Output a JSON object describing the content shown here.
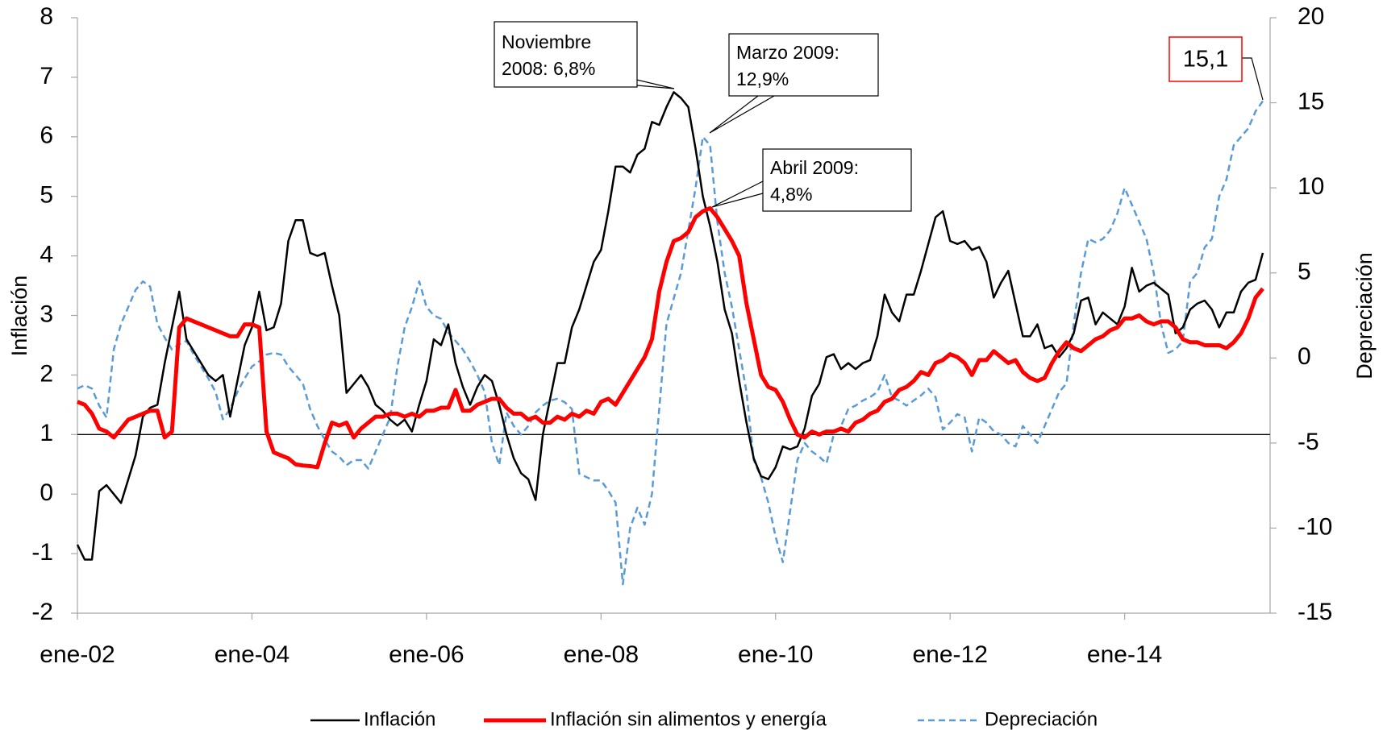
{
  "chart_data": {
    "type": "line",
    "y_label": "Inflación",
    "y2_label": "Depreciación",
    "categories": [
      "ene-02",
      null,
      null,
      null,
      null,
      null,
      null,
      null,
      null,
      null,
      null,
      null,
      null,
      null,
      null,
      null,
      null,
      null,
      null,
      null,
      null,
      null,
      null,
      null,
      "ene-04",
      null,
      null,
      null,
      null,
      null,
      null,
      null,
      null,
      null,
      null,
      null,
      null,
      null,
      null,
      null,
      null,
      null,
      null,
      null,
      null,
      null,
      null,
      null,
      "ene-06",
      null,
      null,
      null,
      null,
      null,
      null,
      null,
      null,
      null,
      null,
      null,
      null,
      null,
      null,
      null,
      null,
      null,
      null,
      null,
      null,
      null,
      null,
      null,
      "ene-08",
      null,
      null,
      null,
      null,
      null,
      null,
      null,
      null,
      null,
      null,
      null,
      null,
      null,
      null,
      null,
      null,
      null,
      null,
      null,
      null,
      null,
      null,
      null,
      "ene-10",
      null,
      null,
      null,
      null,
      null,
      null,
      null,
      null,
      null,
      null,
      null,
      null,
      null,
      null,
      null,
      null,
      null,
      null,
      null,
      null,
      null,
      null,
      null,
      "ene-12",
      null,
      null,
      null,
      null,
      null,
      null,
      null,
      null,
      null,
      null,
      null,
      null,
      null,
      null,
      null,
      null,
      null,
      null,
      null,
      null,
      null,
      null,
      null,
      "ene-14",
      null,
      null,
      null,
      null,
      null,
      null,
      null,
      null,
      null,
      null,
      null,
      null,
      null,
      null,
      null,
      null,
      null,
      null,
      null
    ],
    "series": [
      {
        "name": "Inflación",
        "color": "#000000",
        "width": 2.5,
        "dashed": false,
        "axis": "y",
        "values": [
          -0.85,
          -1.1,
          -1.1,
          0.05,
          0.15,
          0,
          -0.15,
          0.25,
          0.65,
          1.3,
          1.45,
          1.5,
          2.2,
          2.8,
          3.4,
          2.6,
          2.4,
          2.2,
          2.0,
          1.9,
          2.0,
          1.3,
          1.9,
          2.5,
          2.8,
          3.4,
          2.75,
          2.8,
          3.2,
          4.25,
          4.6,
          4.6,
          4.05,
          4.0,
          4.05,
          3.5,
          3.0,
          1.7,
          1.85,
          2.0,
          1.8,
          1.5,
          1.4,
          1.25,
          1.15,
          1.25,
          1.05,
          1.5,
          1.9,
          2.6,
          2.5,
          2.85,
          2.2,
          1.8,
          1.5,
          1.8,
          2.0,
          1.9,
          1.5,
          1.0,
          0.6,
          0.35,
          0.25,
          -0.1,
          1.0,
          1.6,
          2.2,
          2.2,
          2.8,
          3.1,
          3.5,
          3.9,
          4.1,
          4.75,
          5.5,
          5.5,
          5.4,
          5.7,
          5.8,
          6.25,
          6.2,
          6.5,
          6.75,
          6.65,
          6.5,
          5.8,
          5.0,
          4.5,
          3.9,
          3.1,
          2.7,
          1.9,
          1.2,
          0.6,
          0.3,
          0.25,
          0.45,
          0.8,
          0.75,
          0.8,
          1.1,
          1.65,
          1.85,
          2.3,
          2.35,
          2.1,
          2.2,
          2.1,
          2.2,
          2.25,
          2.65,
          3.35,
          3.05,
          2.9,
          3.35,
          3.35,
          3.75,
          4.2,
          4.65,
          4.75,
          4.25,
          4.2,
          4.25,
          4.1,
          4.15,
          3.9,
          3.3,
          3.55,
          3.75,
          3.2,
          2.65,
          2.65,
          2.85,
          2.45,
          2.5,
          2.3,
          2.45,
          2.7,
          3.25,
          3.3,
          2.85,
          3.05,
          2.95,
          2.85,
          3.15,
          3.8,
          3.4,
          3.5,
          3.55,
          3.45,
          3.35,
          2.7,
          2.8,
          3.1,
          3.2,
          3.25,
          3.1,
          2.8,
          3.05,
          3.05,
          3.4,
          3.55,
          3.6,
          4.05
        ]
      },
      {
        "name": "Inflación sin alimentos y energía",
        "color": "#ff0000",
        "width": 5,
        "dashed": false,
        "axis": "y",
        "values": [
          1.55,
          1.5,
          1.35,
          1.1,
          1.05,
          0.95,
          1.1,
          1.25,
          1.3,
          1.35,
          1.4,
          1.4,
          0.95,
          1.05,
          2.8,
          2.95,
          2.9,
          2.85,
          2.8,
          2.75,
          2.7,
          2.65,
          2.65,
          2.85,
          2.85,
          2.8,
          1.05,
          0.7,
          0.65,
          0.6,
          0.5,
          0.48,
          0.47,
          0.45,
          0.85,
          1.2,
          1.15,
          1.2,
          0.95,
          1.1,
          1.2,
          1.3,
          1.3,
          1.35,
          1.35,
          1.3,
          1.35,
          1.3,
          1.4,
          1.4,
          1.45,
          1.45,
          1.75,
          1.4,
          1.4,
          1.5,
          1.55,
          1.6,
          1.6,
          1.45,
          1.35,
          1.35,
          1.25,
          1.3,
          1.2,
          1.2,
          1.3,
          1.25,
          1.35,
          1.3,
          1.4,
          1.35,
          1.55,
          1.6,
          1.5,
          1.7,
          1.9,
          2.1,
          2.3,
          2.6,
          3.4,
          3.9,
          4.25,
          4.3,
          4.4,
          4.65,
          4.75,
          4.8,
          4.65,
          4.45,
          4.25,
          4.0,
          3.2,
          2.6,
          2.0,
          1.8,
          1.75,
          1.55,
          1.25,
          1.0,
          0.95,
          1.05,
          1.0,
          1.05,
          1.05,
          1.1,
          1.05,
          1.2,
          1.25,
          1.35,
          1.4,
          1.55,
          1.6,
          1.75,
          1.8,
          1.9,
          2.05,
          2.0,
          2.2,
          2.25,
          2.35,
          2.3,
          2.2,
          2.0,
          2.25,
          2.25,
          2.4,
          2.3,
          2.2,
          2.25,
          2.05,
          1.95,
          1.9,
          1.95,
          2.2,
          2.4,
          2.55,
          2.45,
          2.4,
          2.5,
          2.6,
          2.65,
          2.75,
          2.8,
          2.95,
          2.95,
          3.0,
          2.9,
          2.85,
          2.9,
          2.9,
          2.8,
          2.6,
          2.55,
          2.55,
          2.5,
          2.5,
          2.5,
          2.45,
          2.55,
          2.7,
          2.95,
          3.3,
          3.45
        ]
      },
      {
        "name": "Depreciación",
        "color": "#5b9bd5",
        "width": 2.5,
        "dashed": true,
        "axis": "y2",
        "values": [
          -1.8,
          -1.6,
          -1.8,
          -2.8,
          -3.5,
          0.5,
          2.0,
          3.0,
          4.0,
          4.5,
          4.2,
          2.0,
          1.2,
          0.5,
          0.8,
          1.0,
          0.2,
          -0.5,
          -1.2,
          -2.0,
          -3.6,
          -3.0,
          -2.0,
          -1.2,
          -0.5,
          -0.2,
          0.2,
          0.3,
          0.2,
          -0.5,
          -1.0,
          -1.5,
          -3.0,
          -4.0,
          -4.8,
          -5.5,
          -5.8,
          -6.3,
          -6.0,
          -6.0,
          -6.5,
          -5.5,
          -4.5,
          -3.5,
          -0.5,
          1.8,
          3.0,
          4.5,
          3.0,
          2.5,
          2.3,
          1.5,
          1.0,
          0.5,
          -0.2,
          -1.0,
          -2.0,
          -5.0,
          -6.3,
          -3.2,
          -4.0,
          -4.5,
          -4.0,
          -3.2,
          -2.8,
          -2.5,
          -2.4,
          -2.6,
          -3.0,
          -6.8,
          -7.0,
          -7.2,
          -7.2,
          -7.8,
          -8.5,
          -13.3,
          -10.0,
          -8.8,
          -9.8,
          -8.0,
          -3.0,
          2.0,
          3.5,
          5.0,
          7.5,
          10.0,
          13.0,
          12.5,
          8.0,
          5.0,
          3.0,
          0.5,
          -2.0,
          -6.0,
          -7.0,
          -8.5,
          -10.5,
          -12.0,
          -9.0,
          -6.0,
          -5.0,
          -5.5,
          -5.8,
          -6.2,
          -4.5,
          -4.0,
          -3.0,
          -2.8,
          -2.5,
          -2.3,
          -2.0,
          -1.0,
          -2.3,
          -2.5,
          -2.8,
          -2.5,
          -2.2,
          -1.8,
          -2.3,
          -4.2,
          -3.8,
          -3.3,
          -3.5,
          -5.5,
          -3.5,
          -3.8,
          -4.3,
          -4.5,
          -5.0,
          -5.2,
          -4.0,
          -4.5,
          -5.0,
          -4.0,
          -3.0,
          -2.0,
          -1.5,
          2.0,
          5.0,
          7.0,
          6.8,
          7.0,
          7.5,
          8.5,
          10.0,
          9.0,
          8.0,
          7.0,
          5.0,
          2.0,
          0.3,
          0.5,
          1.0,
          4.5,
          5.0,
          6.5,
          7.0,
          9.5,
          10.5,
          12.5,
          13.0,
          13.5,
          14.5,
          15.1
        ]
      }
    ],
    "ylim": [
      -2,
      8
    ],
    "yticks": [
      -2,
      -1,
      0,
      1,
      2,
      3,
      4,
      5,
      6,
      7,
      8
    ],
    "y2lim": [
      -15,
      20
    ],
    "y2ticks": [
      -15,
      -10,
      -5,
      0,
      5,
      10,
      15,
      20
    ],
    "reference_line": 1,
    "grid": false,
    "legend": "bottom",
    "annotations": [
      {
        "lines": [
          "Noviembre",
          "2008: 6,8%"
        ]
      },
      {
        "lines": [
          "Marzo 2009:",
          "12,9%"
        ]
      },
      {
        "lines": [
          "Abril 2009:",
          "4,8%"
        ]
      },
      {
        "lines": [
          "15,1"
        ]
      }
    ]
  }
}
